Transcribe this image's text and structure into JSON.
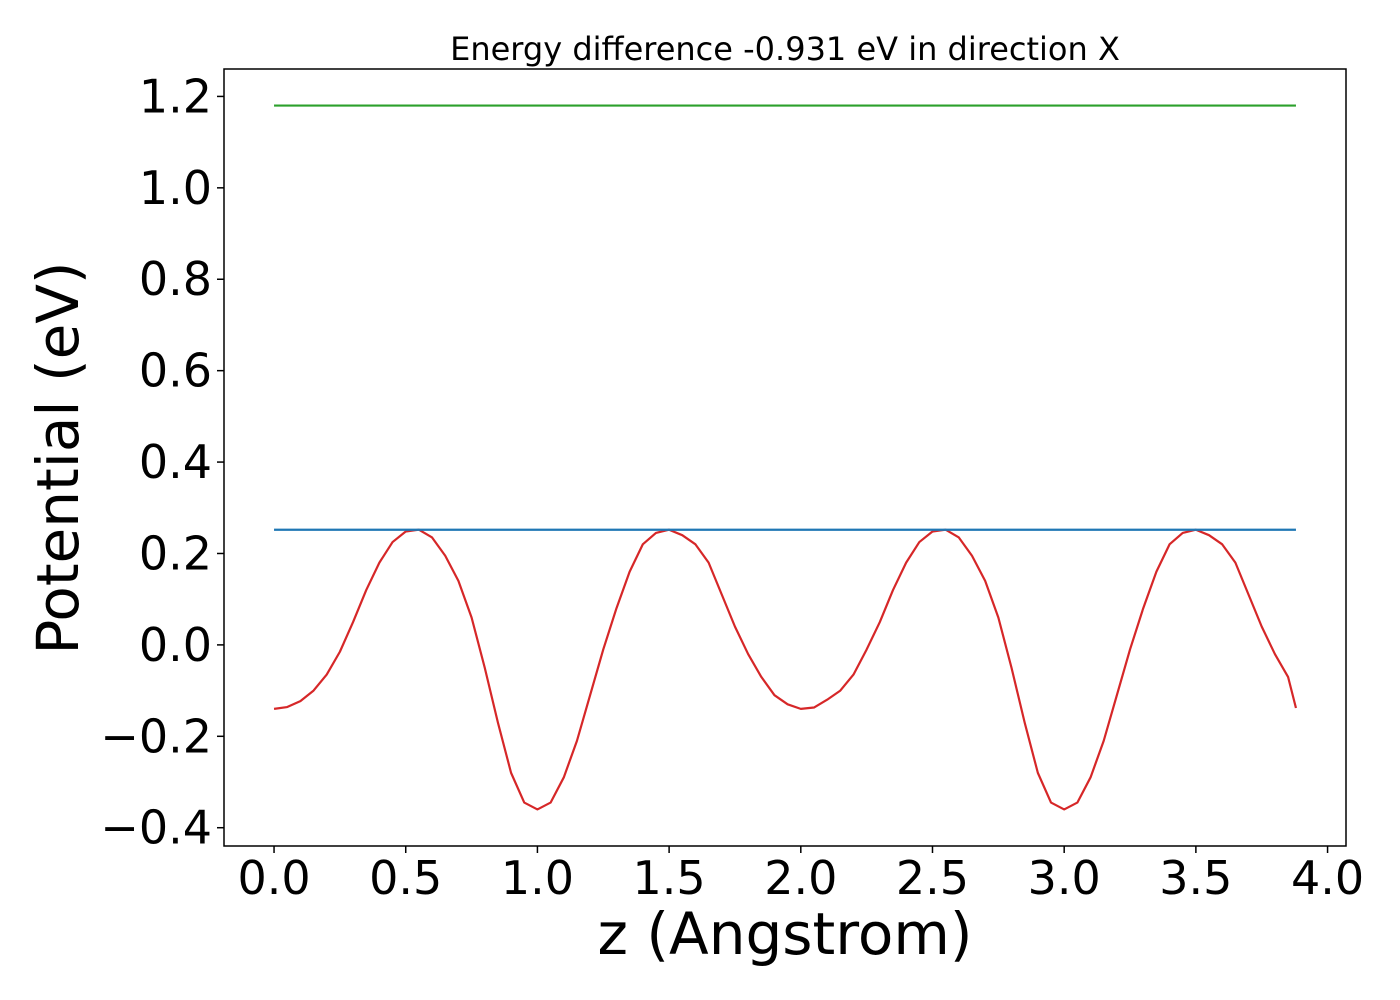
{
  "chart_data": {
    "type": "line",
    "title": "Energy difference -0.931 eV in direction X",
    "xlabel": "z (Angstrom)",
    "ylabel": "Potential (eV)",
    "xlim": [
      -0.19,
      4.07
    ],
    "ylim": [
      -0.44,
      1.26
    ],
    "xticks": [
      0.0,
      0.5,
      1.0,
      1.5,
      2.0,
      2.5,
      3.0,
      3.5,
      4.0
    ],
    "xtick_labels": [
      "0.0",
      "0.5",
      "1.0",
      "1.5",
      "2.0",
      "2.5",
      "3.0",
      "3.5",
      "4.0"
    ],
    "yticks": [
      1.2,
      1.0,
      0.8,
      0.6,
      0.4,
      0.2,
      0.0,
      -0.2,
      -0.4
    ],
    "ytick_labels": [
      "1.2",
      "1.0",
      "0.8",
      "0.6",
      "0.4",
      "0.2",
      "0.0",
      "−0.2",
      "−0.4"
    ],
    "grid": false,
    "series": [
      {
        "color": "#d62728",
        "x": [
          0.0,
          0.05,
          0.1,
          0.15,
          0.2,
          0.25,
          0.3,
          0.35,
          0.4,
          0.45,
          0.5,
          0.55,
          0.6,
          0.65,
          0.7,
          0.75,
          0.8,
          0.85,
          0.9,
          0.95,
          1.0,
          1.05,
          1.1,
          1.15,
          1.2,
          1.25,
          1.3,
          1.35,
          1.4,
          1.45,
          1.5,
          1.55,
          1.6,
          1.65,
          1.7,
          1.75,
          1.8,
          1.85,
          1.9,
          1.95,
          2.0,
          2.05,
          2.1,
          2.15,
          2.2,
          2.25,
          2.3,
          2.35,
          2.4,
          2.45,
          2.5,
          2.55,
          2.6,
          2.65,
          2.7,
          2.75,
          2.8,
          2.85,
          2.9,
          2.95,
          3.0,
          3.05,
          3.1,
          3.15,
          3.2,
          3.25,
          3.3,
          3.35,
          3.4,
          3.45,
          3.5,
          3.55,
          3.6,
          3.65,
          3.7,
          3.75,
          3.8,
          3.85,
          3.88
        ],
        "y": [
          -0.14,
          -0.136,
          -0.123,
          -0.1,
          -0.065,
          -0.015,
          0.05,
          0.12,
          0.18,
          0.225,
          0.248,
          0.252,
          0.235,
          0.195,
          0.14,
          0.06,
          -0.05,
          -0.17,
          -0.28,
          -0.345,
          -0.36,
          -0.345,
          -0.29,
          -0.21,
          -0.11,
          -0.01,
          0.08,
          0.16,
          0.22,
          0.245,
          0.252,
          0.24,
          0.22,
          0.18,
          0.11,
          0.04,
          -0.02,
          -0.07,
          -0.11,
          -0.13,
          -0.14,
          -0.137,
          -0.12,
          -0.1,
          -0.065,
          -0.01,
          0.05,
          0.12,
          0.18,
          0.225,
          0.248,
          0.252,
          0.235,
          0.195,
          0.14,
          0.06,
          -0.05,
          -0.17,
          -0.28,
          -0.345,
          -0.36,
          -0.345,
          -0.29,
          -0.21,
          -0.11,
          -0.01,
          0.08,
          0.16,
          0.22,
          0.245,
          0.252,
          0.24,
          0.22,
          0.18,
          0.11,
          0.04,
          -0.02,
          -0.07,
          -0.138
        ]
      },
      {
        "color": "#1f77b4",
        "x": [
          0.0,
          3.88
        ],
        "y": [
          0.252,
          0.252
        ]
      },
      {
        "color": "#2ca02c",
        "x": [
          0.0,
          3.88
        ],
        "y": [
          1.18,
          1.18
        ]
      }
    ]
  }
}
